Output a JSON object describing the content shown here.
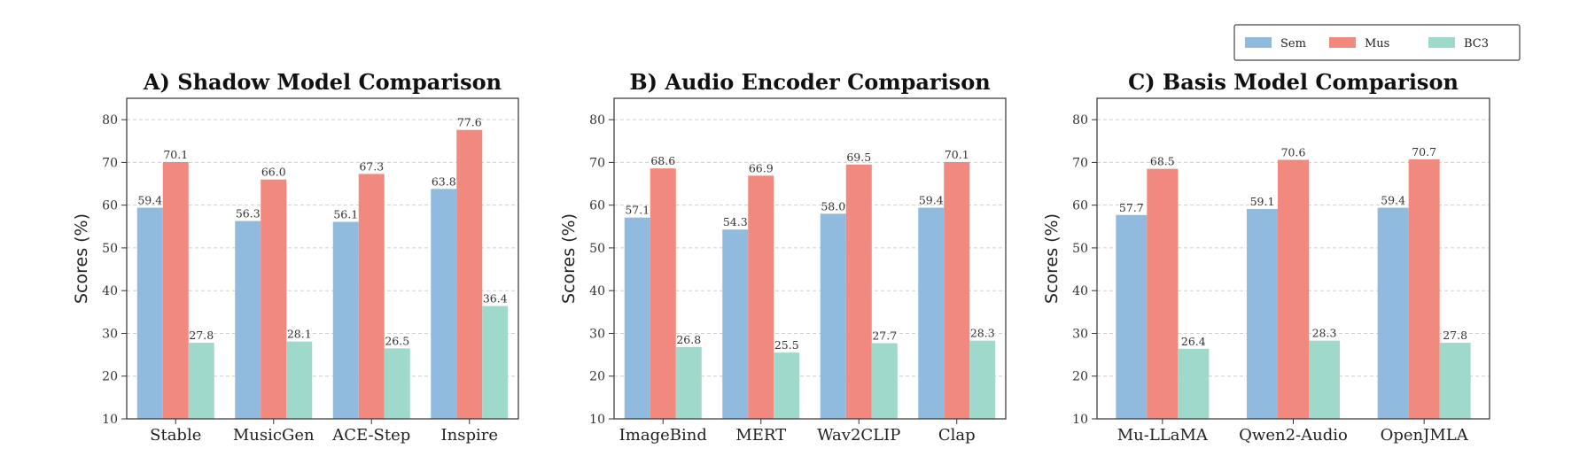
{
  "legend": {
    "items": [
      {
        "name": "Sem",
        "color": "#91bbde"
      },
      {
        "name": "Mus",
        "color": "#f1897f"
      },
      {
        "name": "BC3",
        "color": "#9ed9cb"
      }
    ],
    "placement": "top-right"
  },
  "chart_data": [
    {
      "type": "bar",
      "title": "A) Shadow Model Comparison",
      "ylabel": "Scores (%)",
      "xlabel": "",
      "ylim": [
        10,
        85
      ],
      "yticks": [
        "10",
        "20",
        "30",
        "40",
        "50",
        "60",
        "70",
        "80"
      ],
      "grid": true,
      "categories": [
        "Stable",
        "MusicGen",
        "ACE-Step",
        "Inspire"
      ],
      "series": [
        {
          "name": "Sem",
          "color": "#91bbde",
          "values": [
            59.4,
            56.3,
            56.1,
            63.8
          ],
          "labels": [
            "59.4",
            "56.3",
            "56.1",
            "63.8"
          ]
        },
        {
          "name": "Mus",
          "color": "#f1897f",
          "values": [
            70.1,
            66.0,
            67.3,
            77.6
          ],
          "labels": [
            "70.1",
            "66.0",
            "67.3",
            "77.6"
          ]
        },
        {
          "name": "BC3",
          "color": "#9ed9cb",
          "values": [
            27.8,
            28.1,
            26.5,
            36.4
          ],
          "labels": [
            "27.8",
            "28.1",
            "26.5",
            "36.4"
          ]
        }
      ]
    },
    {
      "type": "bar",
      "title": "B) Audio Encoder Comparison",
      "ylabel": "Scores (%)",
      "xlabel": "",
      "ylim": [
        10,
        85
      ],
      "yticks": [
        "10",
        "20",
        "30",
        "40",
        "50",
        "60",
        "70",
        "80"
      ],
      "grid": true,
      "categories": [
        "ImageBind",
        "MERT",
        "Wav2CLIP",
        "Clap"
      ],
      "series": [
        {
          "name": "Sem",
          "color": "#91bbde",
          "values": [
            57.1,
            54.3,
            58.0,
            59.4
          ],
          "labels": [
            "57.1",
            "54.3",
            "58.0",
            "59.4"
          ]
        },
        {
          "name": "Mus",
          "color": "#f1897f",
          "values": [
            68.6,
            66.9,
            69.5,
            70.1
          ],
          "labels": [
            "68.6",
            "66.9",
            "69.5",
            "70.1"
          ]
        },
        {
          "name": "BC3",
          "color": "#9ed9cb",
          "values": [
            26.8,
            25.5,
            27.7,
            28.3
          ],
          "labels": [
            "26.8",
            "25.5",
            "27.7",
            "28.3"
          ]
        }
      ]
    },
    {
      "type": "bar",
      "title": "C) Basis Model Comparison",
      "ylabel": "Scores (%)",
      "xlabel": "",
      "ylim": [
        10,
        85
      ],
      "yticks": [
        "10",
        "20",
        "30",
        "40",
        "50",
        "60",
        "70",
        "80"
      ],
      "grid": true,
      "categories": [
        "Mu-LLaMA",
        "Qwen2-Audio",
        "OpenJMLA"
      ],
      "series": [
        {
          "name": "Sem",
          "color": "#91bbde",
          "values": [
            57.7,
            59.1,
            59.4
          ],
          "labels": [
            "57.7",
            "59.1",
            "59.4"
          ]
        },
        {
          "name": "Mus",
          "color": "#f1897f",
          "values": [
            68.5,
            70.6,
            70.7
          ],
          "labels": [
            "68.5",
            "70.6",
            "70.7"
          ]
        },
        {
          "name": "BC3",
          "color": "#9ed9cb",
          "values": [
            26.4,
            28.3,
            27.8
          ],
          "labels": [
            "26.4",
            "28.3",
            "27.8"
          ]
        }
      ]
    }
  ]
}
